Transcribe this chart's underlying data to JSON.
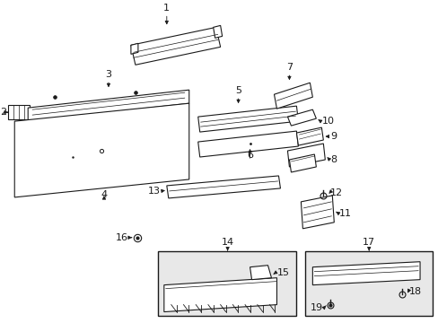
{
  "bg_color": "#ffffff",
  "line_color": "#1a1a1a",
  "fill_color": "#ffffff",
  "fig_width": 4.89,
  "fig_height": 3.6,
  "dpi": 100
}
